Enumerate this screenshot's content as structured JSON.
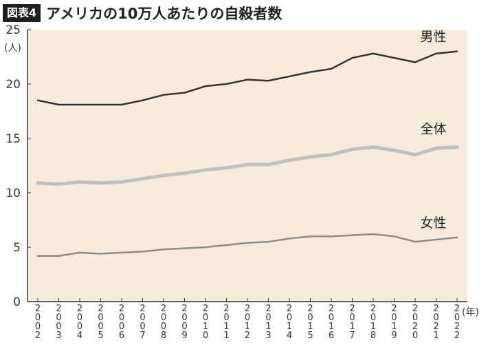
{
  "header": {
    "badge": "図表4",
    "title": "アメリカの10万人あたりの自殺者数"
  },
  "colors": {
    "plot_background": "#f7ebdc",
    "male": "#333333",
    "total": "#c0c0c0",
    "female": "#8c8c8c"
  },
  "chart_data": {
    "type": "line",
    "ylabel": "(人)",
    "xlabel": "(年)",
    "ylim": [
      0,
      25
    ],
    "yticks": [
      0,
      5,
      10,
      15,
      20,
      25
    ],
    "grid": false,
    "x": [
      "2002",
      "2003",
      "2004",
      "2005",
      "2006",
      "2007",
      "2008",
      "2009",
      "2010",
      "2011",
      "2012",
      "2013",
      "2014",
      "2015",
      "2016",
      "2017",
      "2018",
      "2019",
      "2020",
      "2021",
      "2022"
    ],
    "series": [
      {
        "name": "男性",
        "values": [
          18.5,
          18.1,
          18.1,
          18.1,
          18.1,
          18.5,
          19.0,
          19.2,
          19.8,
          20.0,
          20.4,
          20.3,
          20.7,
          21.1,
          21.4,
          22.4,
          22.8,
          22.4,
          22.0,
          22.8,
          23.0
        ]
      },
      {
        "name": "全体",
        "values": [
          10.9,
          10.8,
          11.0,
          10.9,
          11.0,
          11.3,
          11.6,
          11.8,
          12.1,
          12.3,
          12.6,
          12.6,
          13.0,
          13.3,
          13.5,
          14.0,
          14.2,
          13.9,
          13.5,
          14.1,
          14.2
        ]
      },
      {
        "name": "女性",
        "values": [
          4.2,
          4.2,
          4.5,
          4.4,
          4.5,
          4.6,
          4.8,
          4.9,
          5.0,
          5.2,
          5.4,
          5.5,
          5.8,
          6.0,
          6.0,
          6.1,
          6.2,
          6.0,
          5.5,
          5.7,
          5.9
        ]
      }
    ]
  }
}
